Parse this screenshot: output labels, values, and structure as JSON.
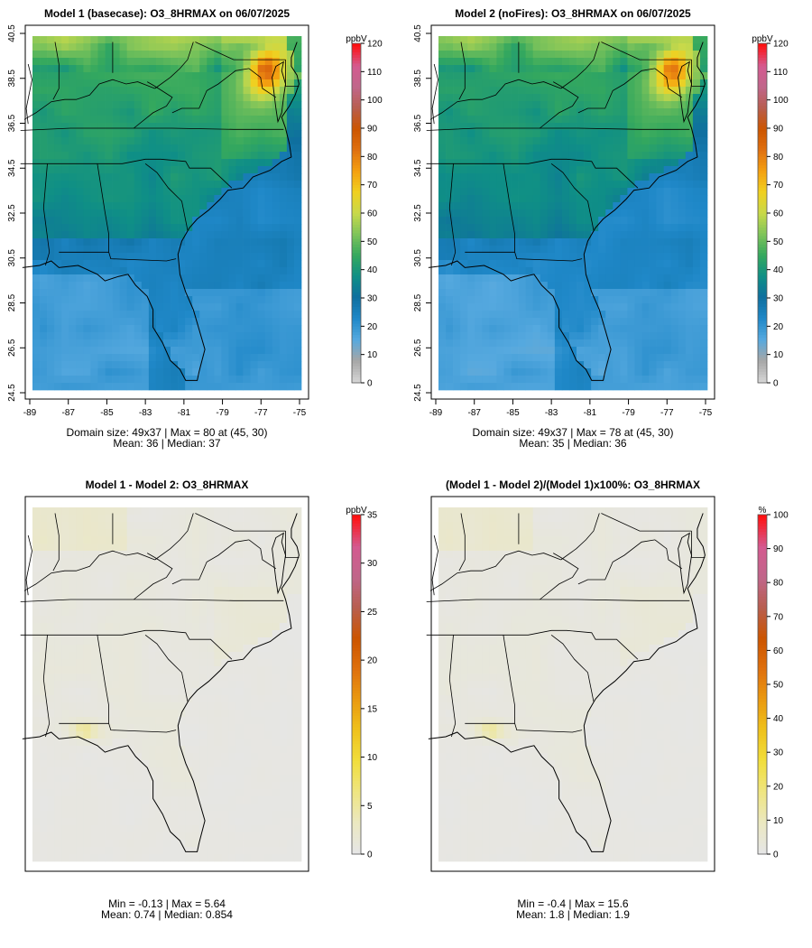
{
  "chart_data": [
    {
      "type": "heatmap",
      "title": "Model 1 (basecase): O3_8HRMAX on 06/07/2025",
      "field": "abs",
      "xticks": [
        "-89",
        "-87",
        "-85",
        "-83",
        "-81",
        "-79",
        "-77",
        "-75"
      ],
      "yticks": [
        "24.5",
        "26.5",
        "28.5",
        "30.5",
        "32.5",
        "34.5",
        "36.5",
        "38.5",
        "40.5"
      ],
      "colorbar": {
        "unit": "ppbV",
        "min": 0,
        "max": 120,
        "ticks": [
          "0",
          "10",
          "20",
          "30",
          "40",
          "50",
          "60",
          "70",
          "80",
          "90",
          "100",
          "110",
          "120"
        ]
      },
      "stats": {
        "line1": "Domain size: 49x37 | Max = 80 at (45, 30)",
        "line2": "Mean: 36 |  Median: 37"
      }
    },
    {
      "type": "heatmap",
      "title": "Model 2 (noFires): O3_8HRMAX on 06/07/2025",
      "field": "abs",
      "xticks": [
        "-89",
        "-87",
        "-85",
        "-83",
        "-81",
        "-79",
        "-77",
        "-75"
      ],
      "yticks": [
        "24.5",
        "26.5",
        "28.5",
        "30.5",
        "32.5",
        "34.5",
        "36.5",
        "38.5",
        "40.5"
      ],
      "colorbar": {
        "unit": "ppbV",
        "min": 0,
        "max": 120,
        "ticks": [
          "0",
          "10",
          "20",
          "30",
          "40",
          "50",
          "60",
          "70",
          "80",
          "90",
          "100",
          "110",
          "120"
        ]
      },
      "stats": {
        "line1": "Domain size: 49x37 | Max = 78 at (45, 30)",
        "line2": "Mean: 35 |  Median: 36"
      }
    },
    {
      "type": "heatmap",
      "title": "Model 1 - Model 2: O3_8HRMAX",
      "field": "diff",
      "colorbar": {
        "unit": "ppbV",
        "min": 0,
        "max": 35,
        "ticks": [
          "0",
          "5",
          "10",
          "15",
          "20",
          "25",
          "30",
          "35"
        ]
      },
      "stats": {
        "line1": "Min = -0.13 | Max = 5.64",
        "line2": "Mean: 0.74 |  Median: 0.854"
      }
    },
    {
      "type": "heatmap",
      "title": "(Model 1 - Model 2)/(Model 1)x100%: O3_8HRMAX",
      "field": "pct",
      "colorbar": {
        "unit": "%",
        "min": 0,
        "max": 100,
        "ticks": [
          "0",
          "10",
          "20",
          "30",
          "40",
          "50",
          "60",
          "70",
          "80",
          "90",
          "100"
        ]
      },
      "stats": {
        "line1": "Min = -0.4 | Max = 15.6",
        "line2": "Mean: 1.8 |  Median: 1.9"
      }
    }
  ],
  "colors": {
    "abs_scale": [
      "#d4d4d4",
      "#a6a6a6",
      "#56a9df",
      "#1f88c8",
      "#0f6f9f",
      "#0f8f86",
      "#34a85e",
      "#7fc45a",
      "#c8d94a",
      "#f0d020",
      "#f4a010",
      "#e07010",
      "#cc5500",
      "#b85e4e",
      "#c0668a",
      "#d45a90",
      "#ff1010"
    ],
    "diff_scale": [
      "#e6e6e6",
      "#ebe8c0",
      "#efe580",
      "#f1de3c",
      "#efc21c",
      "#ea9a10",
      "#df700d",
      "#cc5500",
      "#b85e4e",
      "#c0668a",
      "#d45a90",
      "#ff1010"
    ]
  }
}
